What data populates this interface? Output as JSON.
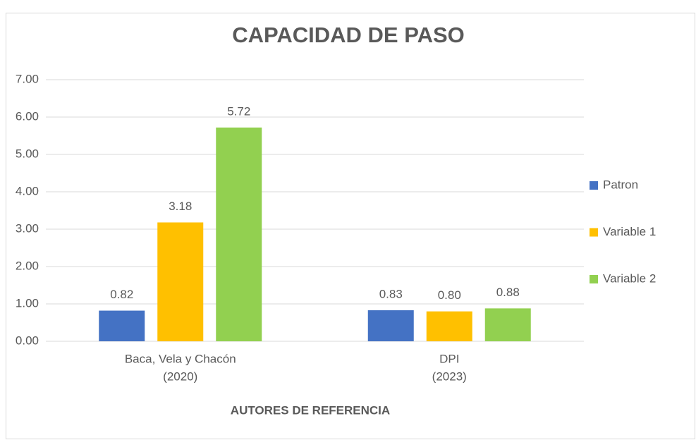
{
  "chart_data": {
    "type": "bar",
    "title": "CAPACIDAD DE PASO",
    "x_label": "AUTORES DE REFERENCIA",
    "categories": [
      [
        "Baca, Vela y Chacón",
        "(2020)"
      ],
      [
        "DPI",
        "(2023)"
      ]
    ],
    "series": [
      {
        "name": "Patron",
        "color": "#4472c4",
        "values": [
          0.82,
          0.83
        ],
        "value_labels": [
          "0.82",
          "0.83"
        ]
      },
      {
        "name": "Variable 1",
        "color": "#ffc000",
        "values": [
          3.18,
          0.8
        ],
        "value_labels": [
          "3.18",
          "0.80"
        ]
      },
      {
        "name": "Variable 2",
        "color": "#92d050",
        "values": [
          5.72,
          0.88
        ],
        "value_labels": [
          "5.72",
          "0.88"
        ]
      }
    ],
    "ylim": [
      0,
      7
    ],
    "yticks": [
      {
        "value": 0,
        "label": "0.00"
      },
      {
        "value": 1,
        "label": "1.00"
      },
      {
        "value": 2,
        "label": "2.00"
      },
      {
        "value": 3,
        "label": "3.00"
      },
      {
        "value": 4,
        "label": "4.00"
      },
      {
        "value": 5,
        "label": "5.00"
      },
      {
        "value": 6,
        "label": "6.00"
      },
      {
        "value": 7,
        "label": "7.00"
      }
    ],
    "grid": true,
    "legend": "right"
  }
}
